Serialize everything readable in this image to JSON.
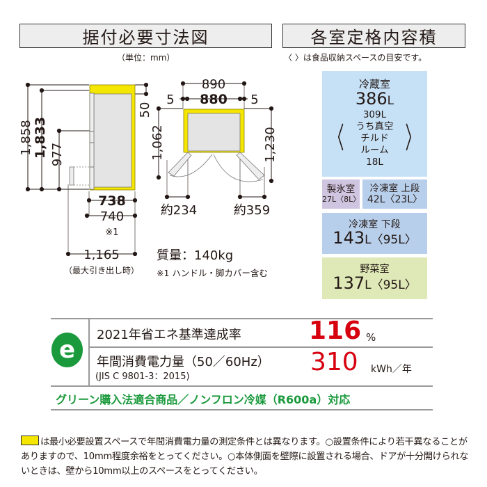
{
  "header": {
    "dimensions_title": "据付必要寸法図",
    "dimensions_unit": "（単位：mm）",
    "capacity_title": "各室定格内容積",
    "capacity_note": "〈 〉は食品収納スペースの目安です。"
  },
  "side_view": {
    "height_total": "1,858",
    "height_body": "1,833",
    "height_lower": "977",
    "top_clearance": "50",
    "depth_body": "738",
    "depth_total": "740",
    "depth_note": "※1",
    "depth_drawer": "1,165",
    "depth_drawer_note": "（最大引き出し時）"
  },
  "top_view": {
    "width_total": "890",
    "width_body": "880",
    "side_left": "5",
    "side_right": "5",
    "door_left_depth": "1,062",
    "door_right_depth": "1,230",
    "door_left_swing": "約234",
    "door_right_swing": "約359"
  },
  "weight": "質量：140kg",
  "footnote_1": "※1 ハンドル・脚カバー含む",
  "compartments": {
    "fridge": {
      "name": "冷蔵室",
      "volume": "386",
      "unit": "L",
      "sub_volume": "309L",
      "sub_line1": "うち真空チルド",
      "sub_line2": "ルーム18L",
      "color": "#c6e1f6"
    },
    "ice": {
      "name": "製氷室",
      "volume": "27L〈8L〉",
      "color": "#d0c5e0"
    },
    "freezer_upper": {
      "name": "冷凍室 上段",
      "volume": "42L〈23L〉",
      "color": "#b8cfeb"
    },
    "freezer_lower": {
      "name": "冷凍室 下段",
      "volume": "143",
      "unit": "L〈95L〉",
      "color": "#b8cfeb"
    },
    "vegetable": {
      "name": "野菜室",
      "volume": "137",
      "unit": "L〈95L〉",
      "color": "#dfe9b7"
    }
  },
  "energy": {
    "logo_letter": "e",
    "achievement_label": "2021年省エネ基準達成率",
    "achievement_value": "116",
    "achievement_unit": "%",
    "consumption_label": "年間消費電力量（50／60Hz）",
    "consumption_standard": "(JIS C 9801-3：2015)",
    "consumption_value": "310",
    "consumption_unit": "kWh／年",
    "green_text": "グリーン購入法適合商品／ノンフロン冷媒（R600a）対応",
    "accent_red": "#d7000f",
    "accent_green": "#1a9a3c"
  },
  "notes": {
    "text": "は最小必要設置スペースで年間消費電力量の測定条件とは異なります。○設置条件により若干異なることがありますので、10mm程度余裕をとってください。○本体側面を壁際に設置される場合、ドアが十分開けられないときは、壁から10mm以上のスペースをとってください。",
    "swatch_color": "#f5e600"
  }
}
